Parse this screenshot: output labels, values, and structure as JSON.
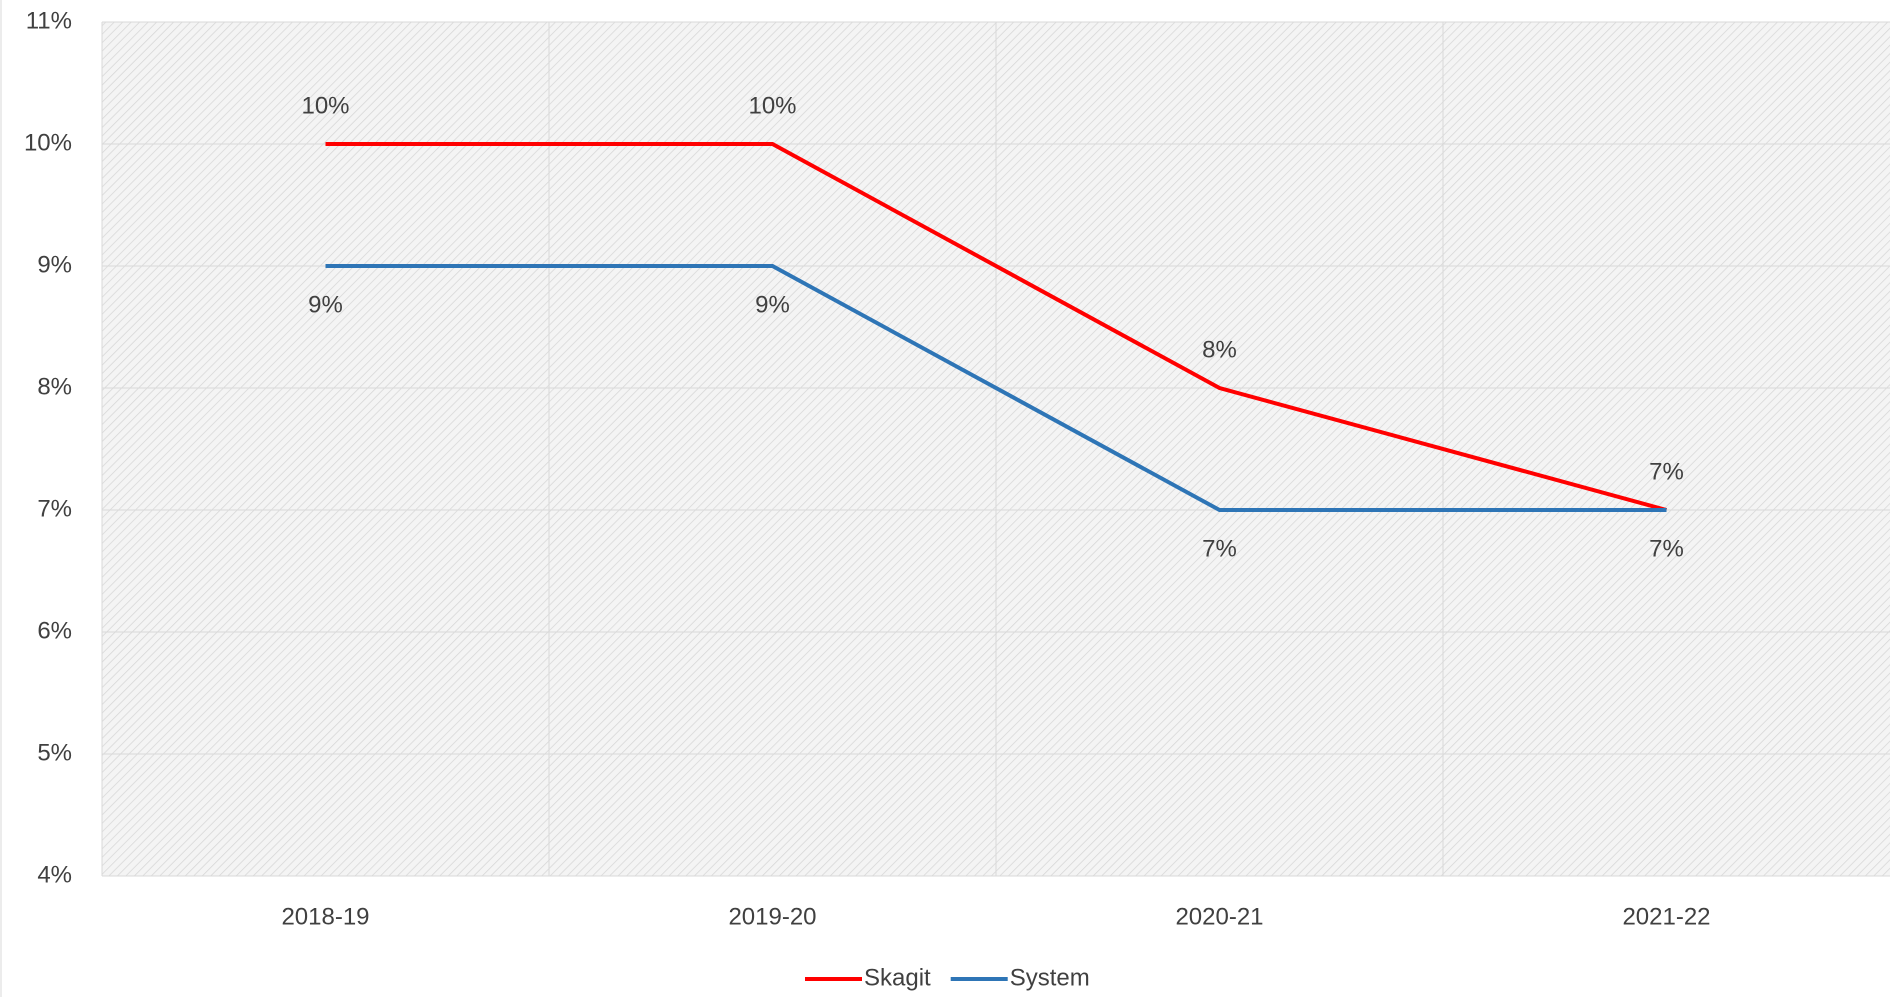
{
  "chart_data": {
    "type": "line",
    "categories": [
      "2018-19",
      "2019-20",
      "2020-21",
      "2021-22"
    ],
    "series": [
      {
        "name": "Skagit",
        "color": "#ff0000",
        "values": [
          10,
          10,
          8,
          7
        ],
        "value_labels": [
          "10%",
          "10%",
          "8%",
          "7%"
        ]
      },
      {
        "name": "System",
        "color": "#2e75b6",
        "values": [
          9,
          9,
          7,
          7
        ],
        "value_labels": [
          "9%",
          "9%",
          "7%",
          "7%"
        ]
      }
    ],
    "ylim": [
      4,
      11
    ],
    "yticks": [
      {
        "value": 4,
        "label": "4%"
      },
      {
        "value": 5,
        "label": "5%"
      },
      {
        "value": 6,
        "label": "6%"
      },
      {
        "value": 7,
        "label": "7%"
      },
      {
        "value": 8,
        "label": "8%"
      },
      {
        "value": 9,
        "label": "9%"
      },
      {
        "value": 10,
        "label": "10%"
      },
      {
        "value": 11,
        "label": "11%"
      }
    ],
    "grid": true,
    "legend": "bottom"
  }
}
